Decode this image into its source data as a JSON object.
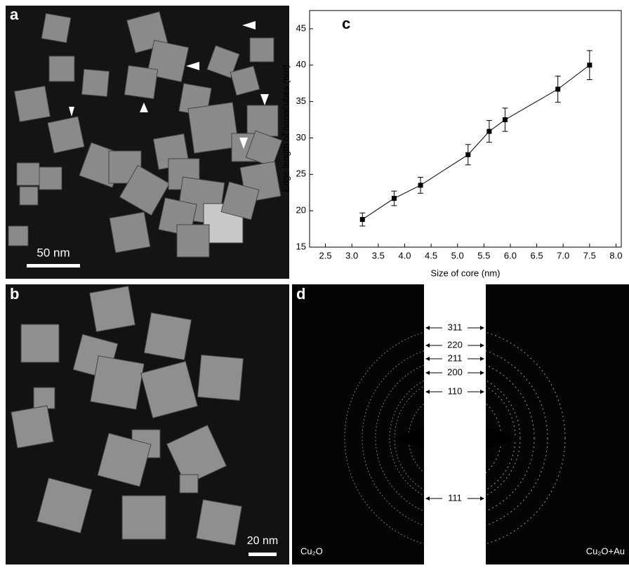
{
  "panels": {
    "a": {
      "label": "a",
      "scale_bar": "50 nm"
    },
    "b": {
      "label": "b",
      "scale_bar": "20 nm"
    },
    "d": {
      "label": "d",
      "rings": [
        "311",
        "220",
        "211",
        "200",
        "110",
        "111"
      ],
      "left_caption": "Cu₂O",
      "right_caption": "Cu₂O+Au"
    }
  },
  "chart_data": {
    "type": "line",
    "panel_label": "c",
    "x_label": "Size of core (nm)",
    "y_label": "Edge length of nanocubes (nm)",
    "series": [
      {
        "x": [
          3.2,
          3.8,
          4.3,
          5.2,
          5.6,
          5.9,
          6.9,
          7.5
        ],
        "values": [
          18.8,
          21.7,
          23.5,
          27.7,
          30.9,
          32.5,
          36.7,
          40.0
        ],
        "errors": [
          0.9,
          1.0,
          1.1,
          1.4,
          1.5,
          1.6,
          1.8,
          2.0
        ],
        "color": "#000000"
      }
    ],
    "xlim": [
      2.2,
      8.1
    ],
    "xticks": [
      2.5,
      {
        "value": 3,
        "label": "3.0"
      },
      3.5,
      {
        "value": 4,
        "label": "4.0"
      },
      4.5,
      {
        "value": 5,
        "label": "5.0"
      },
      5.5,
      {
        "value": 6,
        "label": "6.0"
      },
      6.5,
      {
        "value": 7,
        "label": "7.0"
      },
      7.5,
      {
        "value": 8,
        "label": "8.0"
      }
    ],
    "ylim": [
      15,
      47.5
    ],
    "yticks": [
      15,
      20,
      25,
      30,
      35,
      40,
      45
    ]
  }
}
